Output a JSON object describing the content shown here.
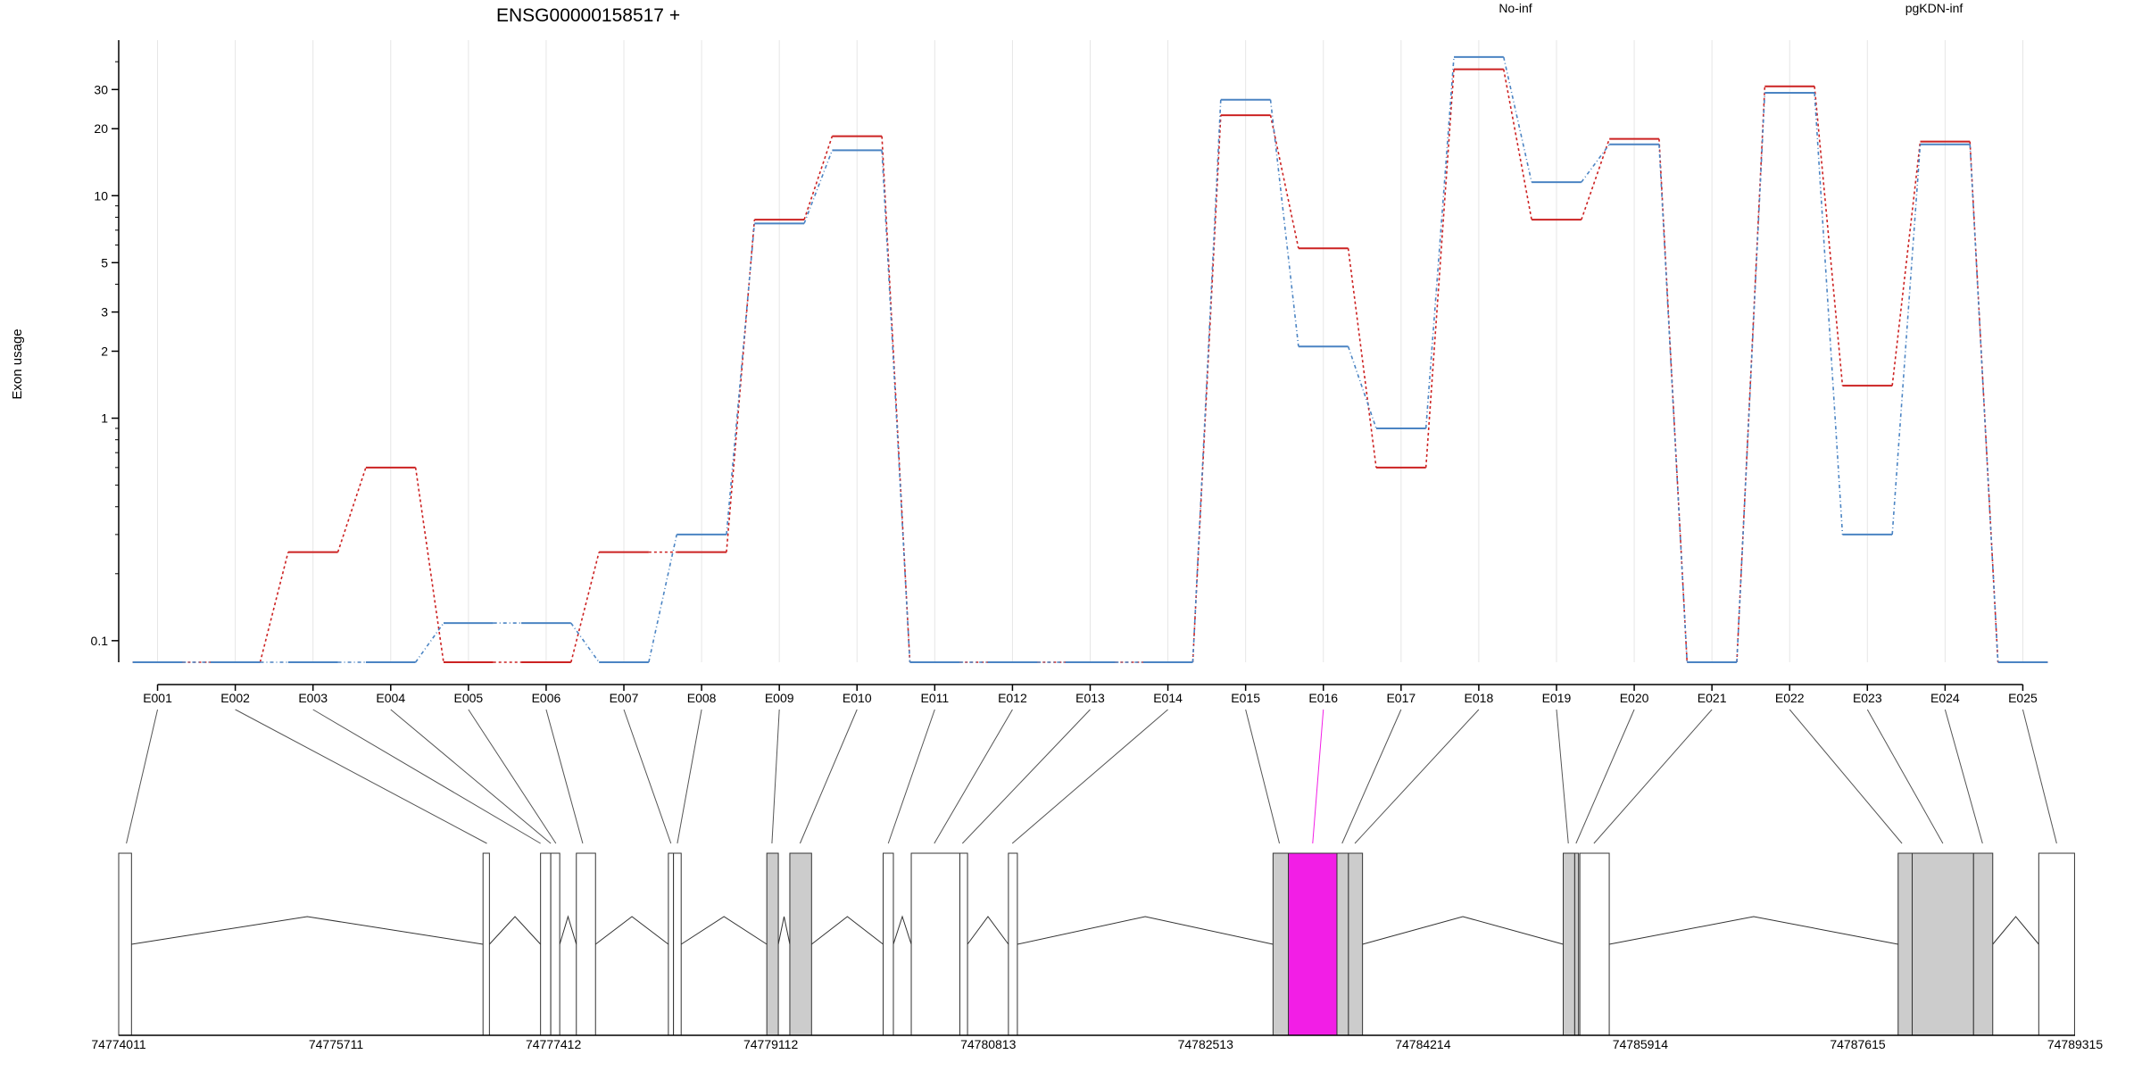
{
  "chart_data": {
    "type": "line",
    "title": "ENSG00000158517 +",
    "ylabel": "Exon usage",
    "xlabel": "",
    "yscale": "log",
    "ylim": [
      0.08,
      50
    ],
    "yticks": [
      "0.1",
      "1",
      "2",
      "3",
      "5",
      "10",
      "20",
      "30"
    ],
    "grid": "vertical",
    "legend_position": "top-right",
    "categories": [
      "E001",
      "E002",
      "E003",
      "E004",
      "E005",
      "E006",
      "E007",
      "E008",
      "E009",
      "E010",
      "E011",
      "E012",
      "E013",
      "E014",
      "E015",
      "E016",
      "E017",
      "E018",
      "E019",
      "E020",
      "E021",
      "E022",
      "E023",
      "E024",
      "E025"
    ],
    "series": [
      {
        "name": "No-inf",
        "color": "#cc2222",
        "style": "dotted-step",
        "values": [
          0.08,
          0.08,
          0.25,
          0.6,
          0.08,
          0.08,
          0.25,
          0.25,
          7.8,
          18.5,
          0.08,
          0.08,
          0.08,
          0.08,
          23,
          5.8,
          0.6,
          37,
          7.8,
          18,
          0.08,
          31,
          1.4,
          17.5,
          0.08
        ]
      },
      {
        "name": "pgKDN-inf",
        "color": "#4b84c3",
        "style": "dot-dash-step",
        "values": [
          0.08,
          0.08,
          0.08,
          0.08,
          0.12,
          0.12,
          0.08,
          0.3,
          7.5,
          16,
          0.08,
          0.08,
          0.08,
          0.08,
          27,
          2.1,
          0.9,
          42,
          11.5,
          17,
          0.08,
          29,
          0.3,
          17,
          0.08
        ]
      }
    ],
    "highlighted_exon": "E016",
    "highlight_color": "#f21ee6",
    "genomic_ticks": [
      "74774011",
      "74775711",
      "74777412",
      "74779112",
      "74780813",
      "74782513",
      "74784214",
      "74785914",
      "74787615",
      "74789315"
    ],
    "gene_model_range": [
      74774011,
      74789315
    ],
    "gene_model": [
      {
        "start": 74774011,
        "end": 74774111,
        "fill": "white"
      },
      {
        "start": 74776861,
        "end": 74776911,
        "fill": "white"
      },
      {
        "start": 74777311,
        "end": 74777391,
        "fill": "white"
      },
      {
        "start": 74777391,
        "end": 74777461,
        "fill": "white"
      },
      {
        "start": 74777591,
        "end": 74777741,
        "fill": "white"
      },
      {
        "start": 74778311,
        "end": 74778351,
        "fill": "white"
      },
      {
        "start": 74778351,
        "end": 74778411,
        "fill": "white"
      },
      {
        "start": 74779081,
        "end": 74779171,
        "fill": "gray"
      },
      {
        "start": 74779261,
        "end": 74779431,
        "fill": "gray"
      },
      {
        "start": 74779991,
        "end": 74780071,
        "fill": "white"
      },
      {
        "start": 74780211,
        "end": 74780591,
        "fill": "white"
      },
      {
        "start": 74780591,
        "end": 74780651,
        "fill": "white"
      },
      {
        "start": 74780971,
        "end": 74781041,
        "fill": "white"
      },
      {
        "start": 74783041,
        "end": 74783161,
        "fill": "gray"
      },
      {
        "start": 74783161,
        "end": 74783541,
        "fill": "highlight"
      },
      {
        "start": 74783541,
        "end": 74783631,
        "fill": "gray"
      },
      {
        "start": 74783631,
        "end": 74783741,
        "fill": "gray"
      },
      {
        "start": 74785311,
        "end": 74785401,
        "fill": "gray"
      },
      {
        "start": 74785401,
        "end": 74785431,
        "fill": "gray"
      },
      {
        "start": 74785441,
        "end": 74785671,
        "fill": "white"
      },
      {
        "start": 74787931,
        "end": 74788041,
        "fill": "gray"
      },
      {
        "start": 74788041,
        "end": 74788521,
        "fill": "gray"
      },
      {
        "start": 74788521,
        "end": 74788671,
        "fill": "gray"
      },
      {
        "start": 74789031,
        "end": 74789311,
        "fill": "white"
      }
    ],
    "exon_links": [
      74774071,
      74776891,
      74777311,
      74777391,
      74777431,
      74777641,
      74778331,
      74778381,
      74779121,
      74779341,
      74780031,
      74780391,
      74780611,
      74781001,
      74783091,
      74783351,
      74783581,
      74783681,
      74785351,
      74785411,
      74785551,
      74787961,
      74788281,
      74788591,
      74789171
    ],
    "introns": [
      [
        74774111,
        74776861
      ],
      [
        74776911,
        74777311
      ],
      [
        74777461,
        74777591
      ],
      [
        74777741,
        74778311
      ],
      [
        74778411,
        74779081
      ],
      [
        74779171,
        74779261
      ],
      [
        74779431,
        74779991
      ],
      [
        74780071,
        74780211
      ],
      [
        74780651,
        74780971
      ],
      [
        74781041,
        74783041
      ],
      [
        74783741,
        74785311
      ],
      [
        74785671,
        74787931
      ],
      [
        74788671,
        74789031
      ]
    ]
  }
}
